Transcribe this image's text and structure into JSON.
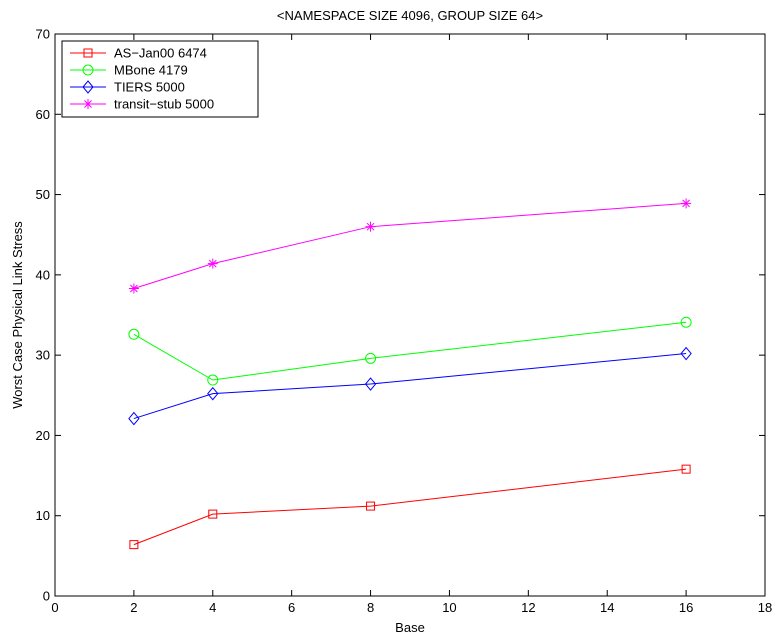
{
  "chart_data": {
    "type": "line",
    "title": "<NAMESPACE SIZE 4096, GROUP SIZE 64>",
    "xlabel": "Base",
    "ylabel": "Worst Case Physical Link Stress",
    "xlim": [
      0,
      18
    ],
    "ylim": [
      0,
      70
    ],
    "xticks": [
      0,
      2,
      4,
      6,
      8,
      10,
      12,
      14,
      16,
      18
    ],
    "yticks": [
      0,
      10,
      20,
      30,
      40,
      50,
      60,
      70
    ],
    "grid": false,
    "legend_position": "top-left",
    "x": [
      2,
      4,
      8,
      16
    ],
    "series": [
      {
        "name": "AS−Jan00 6474",
        "color": "#ff0000",
        "marker": "square",
        "values": [
          6.4,
          10.2,
          11.2,
          15.8
        ]
      },
      {
        "name": "MBone 4179",
        "color": "#00ff00",
        "marker": "circle",
        "values": [
          32.6,
          26.9,
          29.6,
          34.1
        ]
      },
      {
        "name": "TIERS 5000",
        "color": "#0000ff",
        "marker": "diamond",
        "values": [
          22.1,
          25.2,
          26.4,
          30.2
        ]
      },
      {
        "name": "transit−stub 5000",
        "color": "#ff00ff",
        "marker": "asterisk",
        "values": [
          38.3,
          41.4,
          46.0,
          48.9
        ]
      }
    ]
  }
}
